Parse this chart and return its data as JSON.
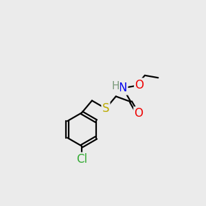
{
  "background_color": "#ebebeb",
  "atom_colors": {
    "C": "#000000",
    "H": "#7a9a7a",
    "N": "#0000ee",
    "O": "#ee0000",
    "S": "#bbaa00",
    "Cl": "#33aa33"
  },
  "bond_color": "#000000",
  "bond_width": 1.6,
  "font_size_large": 12,
  "font_size_medium": 11,
  "font_size_small": 10
}
